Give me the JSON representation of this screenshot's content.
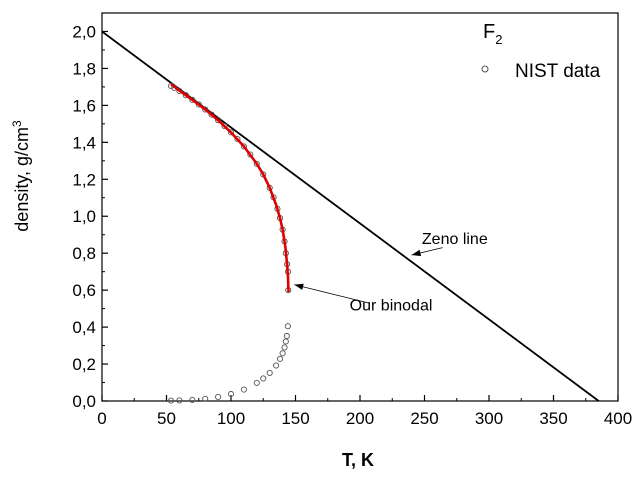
{
  "chart_data": {
    "type": "scatter",
    "xlabel": "T, K",
    "ylabel": "density, g/cm",
    "ylabel_sup": "3",
    "xlim": [
      0,
      400
    ],
    "ylim": [
      0,
      2.1
    ],
    "x_ticks": [
      "0",
      "50",
      "100",
      "150",
      "200",
      "250",
      "300",
      "350",
      "400"
    ],
    "y_ticks": [
      "0,0",
      "0,2",
      "0,4",
      "0,6",
      "0,8",
      "1,0",
      "1,2",
      "1,4",
      "1,6",
      "1,8",
      "2,0"
    ],
    "grid": false,
    "legend": {
      "position": "top-right",
      "title": "F",
      "title_sub": "2",
      "entry_label": "NIST data"
    },
    "series": [
      {
        "name": "NIST data",
        "kind": "markers",
        "marker": "open-circle",
        "color": "#555555",
        "points": [
          [
            53.5,
            1.705
          ],
          [
            56,
            1.695
          ],
          [
            60,
            1.678
          ],
          [
            65,
            1.655
          ],
          [
            70,
            1.63
          ],
          [
            75,
            1.605
          ],
          [
            80,
            1.578
          ],
          [
            85,
            1.55
          ],
          [
            90,
            1.52
          ],
          [
            95,
            1.488
          ],
          [
            100,
            1.454
          ],
          [
            105,
            1.418
          ],
          [
            110,
            1.378
          ],
          [
            115,
            1.334
          ],
          [
            120,
            1.284
          ],
          [
            125,
            1.226
          ],
          [
            130,
            1.154
          ],
          [
            133,
            1.102
          ],
          [
            136,
            1.04
          ],
          [
            138,
            0.99
          ],
          [
            140,
            0.928
          ],
          [
            141.5,
            0.864
          ],
          [
            142.5,
            0.8
          ],
          [
            143.5,
            0.74
          ],
          [
            144.2,
            0.7
          ],
          [
            144.4,
            0.6
          ],
          [
            53.5,
            0.002
          ],
          [
            60,
            0.003
          ],
          [
            70,
            0.006
          ],
          [
            80,
            0.012
          ],
          [
            90,
            0.022
          ],
          [
            100,
            0.038
          ],
          [
            110,
            0.062
          ],
          [
            120,
            0.098
          ],
          [
            125,
            0.122
          ],
          [
            130,
            0.152
          ],
          [
            135,
            0.192
          ],
          [
            138,
            0.228
          ],
          [
            140,
            0.258
          ],
          [
            141.5,
            0.29
          ],
          [
            142.5,
            0.322
          ],
          [
            143.3,
            0.352
          ],
          [
            144.1,
            0.405
          ]
        ]
      },
      {
        "name": "Our binodal",
        "kind": "line",
        "color": "#e00000",
        "points": [
          [
            53.5,
            1.715
          ],
          [
            60,
            1.68
          ],
          [
            70,
            1.63
          ],
          [
            80,
            1.578
          ],
          [
            90,
            1.52
          ],
          [
            100,
            1.454
          ],
          [
            110,
            1.378
          ],
          [
            120,
            1.284
          ],
          [
            125,
            1.226
          ],
          [
            130,
            1.154
          ],
          [
            135,
            1.062
          ],
          [
            138,
            0.99
          ],
          [
            140,
            0.928
          ],
          [
            142,
            0.84
          ],
          [
            143.5,
            0.74
          ],
          [
            144.2,
            0.67
          ],
          [
            144.6,
            0.59
          ]
        ]
      },
      {
        "name": "Zeno line",
        "kind": "line",
        "color": "#000000",
        "points": [
          [
            0,
            2.0
          ],
          [
            385,
            0.0
          ]
        ]
      }
    ],
    "annotations": [
      {
        "text": "Zeno line",
        "label_at": [
          248,
          0.85
        ],
        "arrow_from": [
          264,
          0.83
        ],
        "arrow_to": [
          240,
          0.79
        ]
      },
      {
        "text": "Our binodal",
        "label_at": [
          192,
          0.49
        ],
        "arrow_from": [
          207,
          0.53
        ],
        "arrow_to": [
          149,
          0.63
        ]
      }
    ]
  }
}
